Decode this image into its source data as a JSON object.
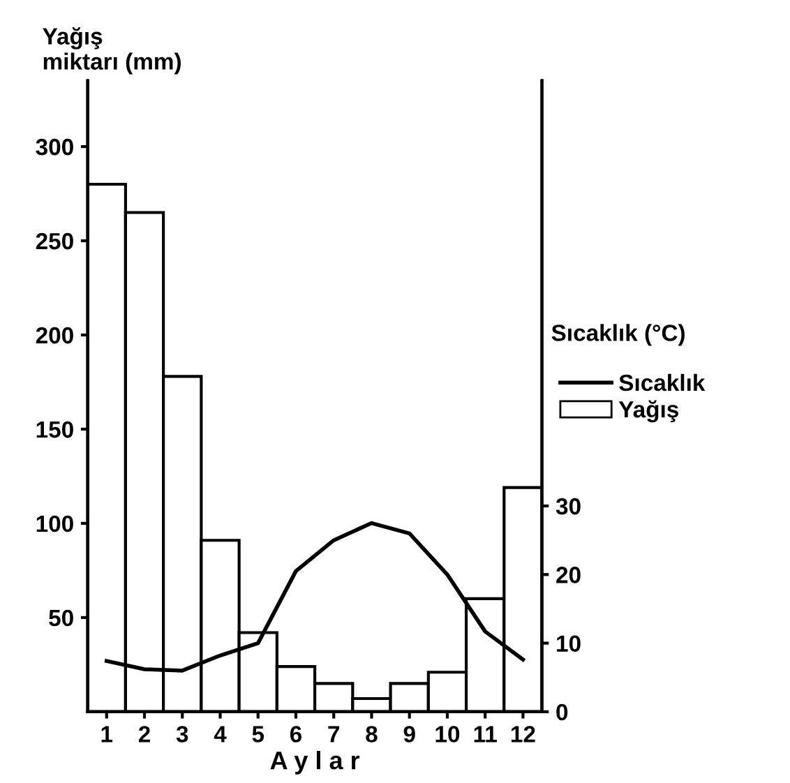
{
  "chart_data": {
    "type": "bar",
    "ylabel": "Yağış\nmiktarı (mm)",
    "y2label": "Sıcaklık (°C)",
    "xlabel": "A y l a r",
    "categories": [
      "1",
      "2",
      "3",
      "4",
      "5",
      "6",
      "7",
      "8",
      "9",
      "10",
      "11",
      "12"
    ],
    "series": [
      {
        "name": "Yağış",
        "color": "#ffffff",
        "values": [
          280,
          265,
          178,
          91,
          42,
          24,
          15,
          7,
          15,
          21,
          60,
          119
        ]
      },
      {
        "name": "Sıcaklık",
        "type": "line",
        "axis": "y2",
        "color": "#000000",
        "values": [
          7.4,
          6.2,
          6,
          8.2,
          10,
          20.5,
          25,
          27.5,
          26,
          20,
          11.7,
          7.6
        ]
      }
    ],
    "ylim": [
      0,
      335
    ],
    "yticks": [
      50,
      100,
      150,
      200,
      250,
      300
    ],
    "y2lim": [
      0,
      92
    ],
    "y2ticks": [
      0,
      10,
      20,
      30
    ],
    "legend": "right",
    "grid": false,
    "marker": "none",
    "line_style": "solid"
  }
}
